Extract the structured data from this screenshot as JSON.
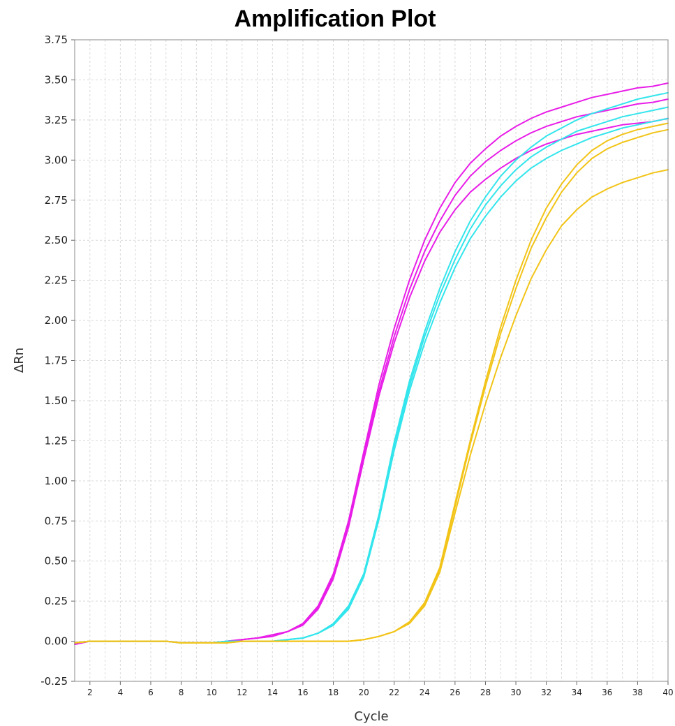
{
  "chart_data": {
    "type": "line",
    "title": "Amplification Plot",
    "xlabel": "Cycle",
    "ylabel": "ΔRn",
    "xlim": [
      1,
      40
    ],
    "ylim": [
      -0.25,
      3.75
    ],
    "xticks": [
      2,
      4,
      6,
      8,
      10,
      12,
      14,
      16,
      18,
      20,
      22,
      24,
      26,
      28,
      30,
      32,
      34,
      36,
      38,
      40
    ],
    "xtick_labels": [
      "2",
      "4",
      "6",
      "8",
      "10",
      "12",
      "14",
      "16",
      "18",
      "20",
      "22",
      "24",
      "26",
      "28",
      "30",
      "32",
      "34",
      "36",
      "38",
      "40"
    ],
    "yticks": [
      -0.25,
      0,
      0.25,
      0.5,
      0.75,
      1.0,
      1.25,
      1.5,
      1.75,
      2.0,
      2.25,
      2.5,
      2.75,
      3.0,
      3.25,
      3.5,
      3.75
    ],
    "ytick_labels": [
      "-0.25",
      "0.00",
      "0.25",
      "0.50",
      "0.75",
      "1.00",
      "1.25",
      "1.50",
      "1.75",
      "2.00",
      "2.25",
      "2.50",
      "2.75",
      "3.00",
      "3.25",
      "3.50",
      "3.75"
    ],
    "grid": true,
    "x": [
      1,
      2,
      3,
      4,
      5,
      6,
      7,
      8,
      9,
      10,
      11,
      12,
      13,
      14,
      15,
      16,
      17,
      18,
      19,
      20,
      21,
      22,
      23,
      24,
      25,
      26,
      27,
      28,
      29,
      30,
      31,
      32,
      33,
      34,
      35,
      36,
      37,
      38,
      39,
      40
    ],
    "series": [
      {
        "color": "#e81ee8",
        "values": [
          -0.01,
          0.0,
          0.0,
          0.0,
          0.0,
          0.0,
          0.0,
          -0.01,
          -0.01,
          -0.01,
          0.0,
          0.01,
          0.02,
          0.04,
          0.06,
          0.11,
          0.22,
          0.42,
          0.75,
          1.18,
          1.6,
          1.95,
          2.25,
          2.5,
          2.7,
          2.86,
          2.98,
          3.07,
          3.15,
          3.21,
          3.26,
          3.3,
          3.33,
          3.36,
          3.39,
          3.41,
          3.43,
          3.45,
          3.46,
          3.48
        ]
      },
      {
        "color": "#e81ee8",
        "values": [
          -0.01,
          0.0,
          0.0,
          0.0,
          0.0,
          0.0,
          0.0,
          -0.01,
          -0.01,
          -0.01,
          0.0,
          0.01,
          0.02,
          0.04,
          0.06,
          0.11,
          0.21,
          0.4,
          0.73,
          1.15,
          1.56,
          1.9,
          2.19,
          2.43,
          2.62,
          2.78,
          2.9,
          2.99,
          3.06,
          3.12,
          3.17,
          3.21,
          3.24,
          3.27,
          3.29,
          3.31,
          3.33,
          3.35,
          3.36,
          3.38
        ]
      },
      {
        "color": "#e81ee8",
        "values": [
          -0.02,
          0.0,
          0.0,
          0.0,
          0.0,
          0.0,
          0.0,
          -0.01,
          -0.01,
          -0.01,
          0.0,
          0.01,
          0.02,
          0.03,
          0.06,
          0.1,
          0.2,
          0.39,
          0.71,
          1.13,
          1.53,
          1.86,
          2.14,
          2.37,
          2.55,
          2.69,
          2.8,
          2.88,
          2.95,
          3.01,
          3.06,
          3.1,
          3.13,
          3.16,
          3.18,
          3.2,
          3.22,
          3.23,
          3.24,
          3.26
        ]
      },
      {
        "color": "#33e5ec",
        "values": [
          -0.01,
          0.0,
          0.0,
          0.0,
          0.0,
          0.0,
          0.0,
          -0.01,
          -0.01,
          -0.01,
          0.0,
          0.0,
          0.0,
          0.0,
          0.01,
          0.02,
          0.05,
          0.11,
          0.22,
          0.42,
          0.79,
          1.24,
          1.62,
          1.93,
          2.2,
          2.43,
          2.62,
          2.77,
          2.9,
          3.0,
          3.08,
          3.15,
          3.2,
          3.25,
          3.29,
          3.32,
          3.35,
          3.38,
          3.4,
          3.42
        ]
      },
      {
        "color": "#33e5ec",
        "values": [
          -0.01,
          0.0,
          0.0,
          0.0,
          0.0,
          0.0,
          0.0,
          -0.01,
          -0.01,
          -0.01,
          0.0,
          0.0,
          0.0,
          0.0,
          0.01,
          0.02,
          0.05,
          0.1,
          0.21,
          0.41,
          0.77,
          1.21,
          1.59,
          1.9,
          2.16,
          2.38,
          2.57,
          2.72,
          2.84,
          2.94,
          3.02,
          3.08,
          3.13,
          3.18,
          3.21,
          3.24,
          3.27,
          3.29,
          3.31,
          3.33
        ]
      },
      {
        "color": "#33e5ec",
        "values": [
          -0.01,
          0.0,
          0.0,
          0.0,
          0.0,
          0.0,
          0.0,
          -0.01,
          -0.01,
          -0.01,
          0.0,
          0.0,
          0.0,
          0.0,
          0.01,
          0.02,
          0.05,
          0.1,
          0.2,
          0.4,
          0.76,
          1.19,
          1.56,
          1.86,
          2.11,
          2.33,
          2.51,
          2.65,
          2.77,
          2.87,
          2.95,
          3.01,
          3.06,
          3.1,
          3.14,
          3.17,
          3.2,
          3.22,
          3.24,
          3.26
        ]
      },
      {
        "color": "#f2c418",
        "values": [
          -0.01,
          0.0,
          0.0,
          0.0,
          0.0,
          0.0,
          0.0,
          -0.01,
          -0.01,
          -0.01,
          -0.01,
          0.0,
          0.0,
          0.0,
          0.0,
          0.0,
          0.0,
          0.0,
          0.0,
          0.01,
          0.03,
          0.06,
          0.12,
          0.24,
          0.46,
          0.86,
          1.25,
          1.62,
          1.96,
          2.25,
          2.5,
          2.7,
          2.85,
          2.97,
          3.06,
          3.12,
          3.16,
          3.19,
          3.21,
          3.23
        ]
      },
      {
        "color": "#f2c418",
        "values": [
          -0.01,
          0.0,
          0.0,
          0.0,
          0.0,
          0.0,
          0.0,
          -0.01,
          -0.01,
          -0.01,
          -0.01,
          0.0,
          0.0,
          0.0,
          0.0,
          0.0,
          0.0,
          0.0,
          0.0,
          0.01,
          0.03,
          0.06,
          0.12,
          0.23,
          0.45,
          0.84,
          1.23,
          1.59,
          1.92,
          2.2,
          2.45,
          2.64,
          2.8,
          2.92,
          3.01,
          3.07,
          3.11,
          3.14,
          3.17,
          3.19
        ]
      },
      {
        "color": "#f2c418",
        "values": [
          -0.01,
          0.0,
          0.0,
          0.0,
          0.0,
          0.0,
          0.0,
          -0.01,
          -0.01,
          -0.01,
          -0.01,
          0.0,
          0.0,
          0.0,
          0.0,
          0.0,
          0.0,
          0.0,
          0.0,
          0.01,
          0.03,
          0.06,
          0.11,
          0.22,
          0.43,
          0.8,
          1.16,
          1.48,
          1.77,
          2.03,
          2.26,
          2.44,
          2.59,
          2.69,
          2.77,
          2.82,
          2.86,
          2.89,
          2.92,
          2.94
        ]
      }
    ]
  }
}
